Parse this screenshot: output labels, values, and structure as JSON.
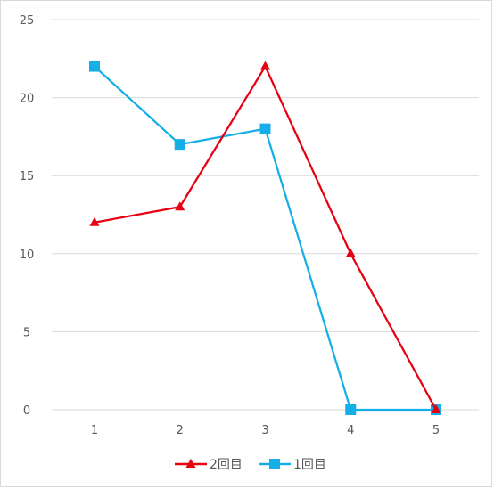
{
  "chart_data": {
    "type": "line",
    "title": "",
    "xlabel": "",
    "ylabel": "",
    "x": [
      1,
      2,
      3,
      4,
      5
    ],
    "x_tick_labels": [
      "1",
      "2",
      "3",
      "4",
      "5"
    ],
    "ylim": [
      0,
      25
    ],
    "y_ticks": [
      0,
      5,
      10,
      15,
      20,
      25
    ],
    "y_tick_labels": [
      "0",
      "5",
      "10",
      "15",
      "20",
      "25"
    ],
    "grid": "horizontal",
    "legend_position": "bottom",
    "series": [
      {
        "name": "2回目",
        "values": [
          12,
          13,
          22,
          10,
          0
        ],
        "color": "#e60012",
        "marker": "triangle"
      },
      {
        "name": "1回目",
        "values": [
          22,
          17,
          18,
          0,
          0
        ],
        "color": "#16aee6",
        "marker": "square"
      }
    ]
  }
}
